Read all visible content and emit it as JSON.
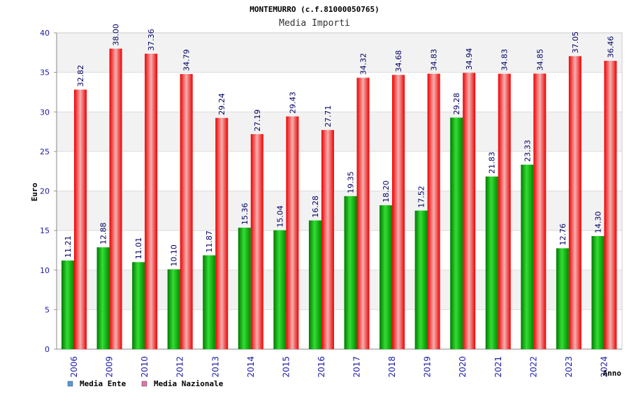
{
  "chart_data": {
    "type": "bar",
    "title": "MONTEMURRO (c.f.81000050765)",
    "subtitle": "Media Importi",
    "xlabel": "Anno",
    "ylabel": "Euro",
    "ylim": [
      0,
      40
    ],
    "yticks": [
      0,
      5,
      10,
      15,
      20,
      25,
      30,
      35,
      40
    ],
    "grid": true,
    "legend_position": "bottom-left",
    "categories": [
      "2006",
      "2009",
      "2010",
      "2012",
      "2013",
      "2014",
      "2015",
      "2016",
      "2017",
      "2018",
      "2019",
      "2020",
      "2021",
      "2022",
      "2023",
      "2024"
    ],
    "series": [
      {
        "name": "Media Ente",
        "color": "#00aa00",
        "legend_color": "#5599dd",
        "values": [
          11.21,
          12.88,
          11.01,
          10.1,
          11.87,
          15.36,
          15.04,
          16.28,
          19.35,
          18.2,
          17.52,
          29.28,
          21.83,
          23.33,
          12.76,
          14.3
        ],
        "labels": [
          "11.21",
          "12.88",
          "11.01",
          "10.10",
          "11.87",
          "15.36",
          "15.04",
          "16.28",
          "19.35",
          "18.20",
          "17.52",
          "29.28",
          "21.83",
          "23.33",
          "12.76",
          "14.30"
        ]
      },
      {
        "name": "Media Nazionale",
        "color": "#ee1111",
        "legend_color": "#dd77aa",
        "values": [
          32.82,
          38.0,
          37.36,
          34.79,
          29.24,
          27.19,
          29.43,
          27.71,
          34.32,
          34.68,
          34.83,
          34.94,
          34.83,
          34.85,
          37.05,
          36.46
        ],
        "labels": [
          "32.82",
          "38.00",
          "37.36",
          "34.79",
          "29.24",
          "27.19",
          "29.43",
          "27.71",
          "34.32",
          "34.68",
          "34.83",
          "34.94",
          "34.83",
          "34.85",
          "37.05",
          "36.46"
        ]
      }
    ]
  }
}
